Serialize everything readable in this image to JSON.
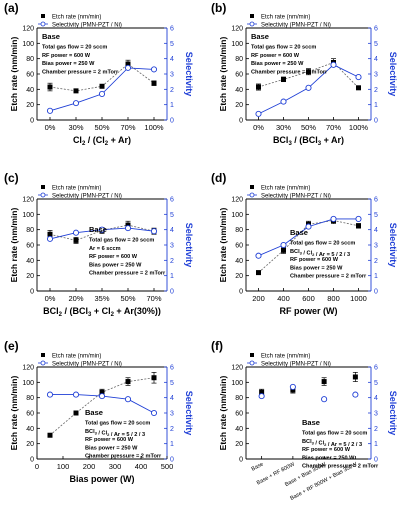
{
  "chart_data": [
    {
      "panel_label": "(a)",
      "type": "line",
      "categories": [
        "0%",
        "30%",
        "50%",
        "70%",
        "100%"
      ],
      "xlabel": "Cl2 / (Cl2 + Ar)",
      "xlabel_parts": [
        "Cl",
        "2",
        " / (Cl",
        "2",
        " + Ar)"
      ],
      "ylabel": "Etch rate (nm/min)",
      "y2label": "Selectivity",
      "ylim": [
        0,
        120
      ],
      "y2lim": [
        0,
        6
      ],
      "yticks": [
        "0",
        "20",
        "40",
        "60",
        "80",
        "100",
        "120"
      ],
      "y2ticks": [
        "0",
        "1",
        "2",
        "3",
        "4",
        "5",
        "6"
      ],
      "series": [
        {
          "name": "Etch rate (nm/min)",
          "axis": "left",
          "marker": "filled-square",
          "color": "#000000",
          "values": [
            43,
            38,
            44,
            73,
            48
          ],
          "errors": [
            5,
            2,
            2,
            5,
            3
          ]
        },
        {
          "name": "Selectivity (PMN-PZT / Ni)",
          "axis": "right",
          "marker": "open-circle",
          "color": "#1f3fd6",
          "values": [
            0.6,
            1.1,
            1.7,
            3.4,
            3.3
          ]
        }
      ],
      "annotation": [
        "Base",
        "Total gas flow = 20 sccm",
        "RF power = 600 W",
        "Bias power = 250 W",
        "Chamber pressure = 2 mTorr"
      ]
    },
    {
      "panel_label": "(b)",
      "type": "line",
      "categories": [
        "0%",
        "30%",
        "50%",
        "70%",
        "100%"
      ],
      "xlabel": "BCl3 / (BCl3 + Ar)",
      "xlabel_parts": [
        "BCl",
        "3",
        " / (BCl",
        "3",
        " + Ar)"
      ],
      "ylabel": "Etch rate (nm/min)",
      "y2label": "Selectivity",
      "ylim": [
        0,
        120
      ],
      "y2lim": [
        0,
        6
      ],
      "yticks": [
        "0",
        "20",
        "40",
        "60",
        "80",
        "100",
        "120"
      ],
      "y2ticks": [
        "0",
        "1",
        "2",
        "3",
        "4",
        "5",
        "6"
      ],
      "series": [
        {
          "name": "Etch rate (nm/min)",
          "axis": "left",
          "marker": "filled-square",
          "color": "#000000",
          "values": [
            43,
            53,
            63,
            75,
            42
          ],
          "errors": [
            4,
            3,
            4,
            5,
            2
          ]
        },
        {
          "name": "Selectivity (PMN-PZT / Ni)",
          "axis": "right",
          "marker": "open-circle",
          "color": "#1f3fd6",
          "values": [
            0.4,
            1.2,
            2.1,
            3.6,
            2.8
          ]
        }
      ],
      "annotation": [
        "Base",
        "Total gas flow = 20 sccm",
        "RF power = 600 W",
        "Bias power = 250 W",
        "Chamber pressure = 2 mTorr"
      ]
    },
    {
      "panel_label": "(c)",
      "type": "line",
      "categories": [
        "0%",
        "20%",
        "35%",
        "50%",
        "70%"
      ],
      "xlabel": "BCl2 / (BCl3 + Cl2 + Ar(30%))",
      "xlabel_parts": [
        "BCl",
        "2",
        " / (BCl",
        "3",
        " + Cl",
        "2",
        " + Ar(30%))"
      ],
      "ylabel": "Etch rate (nm/min)",
      "y2label": "Selectivity",
      "ylim": [
        0,
        120
      ],
      "y2lim": [
        0,
        6
      ],
      "yticks": [
        "0",
        "20",
        "40",
        "60",
        "80",
        "100",
        "120"
      ],
      "y2ticks": [
        "0",
        "1",
        "2",
        "3",
        "4",
        "5",
        "6"
      ],
      "series": [
        {
          "name": "Etch rate (nm/min)",
          "axis": "left",
          "marker": "filled-square",
          "color": "#000000",
          "values": [
            74,
            66,
            79,
            86,
            78
          ],
          "errors": [
            5,
            4,
            4,
            5,
            4
          ]
        },
        {
          "name": "Selectivity (PMN-PZT / Ni)",
          "axis": "right",
          "marker": "open-circle",
          "color": "#1f3fd6",
          "values": [
            3.4,
            3.8,
            4.0,
            4.1,
            3.9
          ]
        }
      ],
      "annotation": [
        "Base",
        "Total gas flow = 20 sccm",
        "Ar = 6 sccm",
        "RF power = 600 W",
        "Bias power = 250 W",
        "Chamber pressure = 2 mTorr"
      ]
    },
    {
      "panel_label": "(d)",
      "type": "line",
      "x": [
        200,
        400,
        600,
        800,
        1000
      ],
      "xticks": [
        "200",
        "400",
        "600",
        "800",
        "1000"
      ],
      "xlim": [
        100,
        1100
      ],
      "xlabel": "RF power (W)",
      "xlabel_parts": [
        "RF power (W)"
      ],
      "ylabel": "Etch rate (nm/min)",
      "y2label": "Selectivity",
      "ylim": [
        0,
        120
      ],
      "y2lim": [
        0,
        6
      ],
      "yticks": [
        "0",
        "20",
        "40",
        "60",
        "80",
        "100",
        "120"
      ],
      "y2ticks": [
        "0",
        "1",
        "2",
        "3",
        "4",
        "5",
        "6"
      ],
      "series": [
        {
          "name": "Etch rate (nm/min)",
          "axis": "left",
          "marker": "filled-square",
          "color": "#000000",
          "values": [
            24,
            53,
            87,
            92,
            85
          ],
          "errors": [
            2,
            4,
            4,
            4,
            3
          ]
        },
        {
          "name": "Selectivity (PMN-PZT / Ni)",
          "axis": "right",
          "marker": "open-circle",
          "color": "#1f3fd6",
          "values": [
            2.3,
            3.0,
            4.2,
            4.7,
            4.7
          ]
        }
      ],
      "annotation": [
        "Base",
        "Total gas flow = 20 sccm",
        "BCl3 / Cl2 / Ar = 5 / 2 / 3",
        "RF power = 600 W",
        "Bias power = 250 W",
        "Chamber pressure = 2 mTorr"
      ]
    },
    {
      "panel_label": "(e)",
      "type": "line",
      "x": [
        50,
        150,
        250,
        350,
        450
      ],
      "xticks": [
        "0",
        "100",
        "200",
        "300",
        "400",
        "500"
      ],
      "xlim": [
        0,
        500
      ],
      "xlabel": "Bias power (W)",
      "xlabel_parts": [
        "Bias power (W)"
      ],
      "ylabel": "Etch rate (nm/min)",
      "y2label": "Selectivity",
      "ylim": [
        0,
        120
      ],
      "y2lim": [
        0,
        6
      ],
      "yticks": [
        "0",
        "20",
        "40",
        "60",
        "80",
        "100",
        "120"
      ],
      "y2ticks": [
        "0",
        "1",
        "2",
        "3",
        "4",
        "5",
        "6"
      ],
      "series": [
        {
          "name": "Etch rate (nm/min)",
          "axis": "left",
          "marker": "filled-square",
          "color": "#000000",
          "values": [
            31,
            60,
            87,
            101,
            106
          ],
          "errors": [
            2,
            2,
            4,
            5,
            7
          ]
        },
        {
          "name": "Selectivity (PMN-PZT / Ni)",
          "axis": "right",
          "marker": "open-circle",
          "color": "#1f3fd6",
          "values": [
            4.2,
            4.2,
            4.1,
            3.9,
            3.0
          ]
        }
      ],
      "annotation": [
        "Base",
        "Total gas flow = 20 sccm",
        "BCl3 / Cl2 / Ar = 5 / 2 / 3",
        "RF power = 600 W",
        "Bias power = 250 W",
        "Chamber pressure = 2 mTorr"
      ]
    },
    {
      "panel_label": "(f)",
      "type": "scatter",
      "categories": [
        "Base",
        "Base + RF 800W",
        "Base + Bias 350W",
        "Base + RF 800W + Bias 350W"
      ],
      "xlabel": "",
      "ylabel": "Etch rate (nm/min)",
      "y2label": "Selectivity",
      "ylim": [
        0,
        120
      ],
      "y2lim": [
        0,
        6
      ],
      "yticks": [
        "0",
        "20",
        "40",
        "60",
        "80",
        "100",
        "120"
      ],
      "y2ticks": [
        "0",
        "1",
        "2",
        "3",
        "4",
        "5",
        "6"
      ],
      "series": [
        {
          "name": "Etch rate (nm/min)",
          "axis": "left",
          "marker": "filled-square",
          "color": "#000000",
          "values": [
            87,
            90,
            101,
            107
          ],
          "errors": [
            4,
            4,
            5,
            6
          ]
        },
        {
          "name": "Selectivity (PMN-PZT / Ni)",
          "axis": "right",
          "marker": "open-circle",
          "color": "#1f3fd6",
          "values": [
            4.1,
            4.7,
            3.9,
            4.2
          ]
        }
      ],
      "annotation": [
        "Base",
        "Total gas flow = 20 sccm",
        "BCl3 / Cl2 / Ar = 5 / 2 / 3",
        "RF power = 600 W",
        "Bias power = 250 W",
        "Chamber pressure = 2 mTorr"
      ]
    }
  ]
}
